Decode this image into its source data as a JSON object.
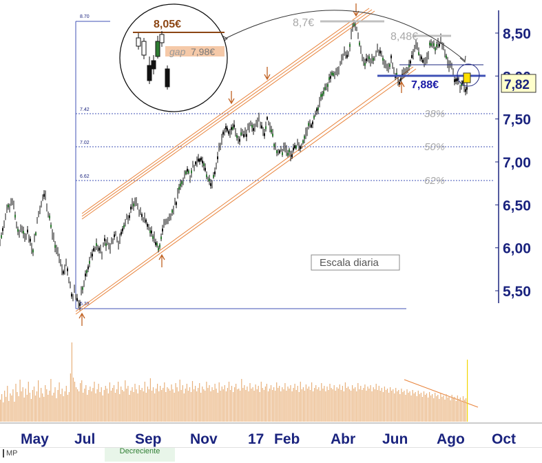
{
  "chart_data": {
    "type": "candlestick",
    "xlabel": "",
    "ylabel": "",
    "scale_note": "Escala diaria",
    "last_price": "7,82",
    "y_ticks": [
      "8,50",
      "8,00",
      "7,50",
      "7,00",
      "6,50",
      "6,00",
      "5,50"
    ],
    "y_tick_values": [
      8.5,
      8.0,
      7.5,
      7.0,
      6.5,
      6.0,
      5.5
    ],
    "ylim": [
      5.3,
      8.8
    ],
    "x_ticks": [
      "May",
      "Jul",
      "Sep",
      "Nov",
      "17",
      "Feb",
      "Abr",
      "Jun",
      "Ago",
      "Oct"
    ],
    "fib_levels": [
      {
        "label": "38%",
        "value": 7.42,
        "small_label": "7.42"
      },
      {
        "label": "50%",
        "value": 7.02,
        "small_label": "7.02"
      },
      {
        "label": "62%",
        "value": 6.62,
        "small_label": "6.62"
      }
    ],
    "fib_top": {
      "small_label": "8.70",
      "value": 8.7
    },
    "fib_bottom": {
      "small_label": "5.33",
      "value": 5.33
    },
    "annotations": {
      "peak": "8,7€",
      "lower_high": "8,48€",
      "support": "7,88€",
      "inset_top": "8,05€",
      "inset_gap_label": "gap",
      "inset_gap_value": "7,98€"
    },
    "price_path": [
      [
        0,
        6.05
      ],
      [
        4,
        6.22
      ],
      [
        8,
        6.35
      ],
      [
        12,
        6.45
      ],
      [
        16,
        6.55
      ],
      [
        20,
        6.48
      ],
      [
        24,
        6.3
      ],
      [
        28,
        6.18
      ],
      [
        32,
        6.22
      ],
      [
        36,
        6.1
      ],
      [
        40,
        6.18
      ],
      [
        44,
        6.05
      ],
      [
        48,
        6.0
      ],
      [
        52,
        6.2
      ],
      [
        56,
        6.4
      ],
      [
        60,
        6.55
      ],
      [
        64,
        6.65
      ],
      [
        68,
        6.5
      ],
      [
        72,
        6.35
      ],
      [
        76,
        6.15
      ],
      [
        80,
        6.0
      ],
      [
        84,
        5.92
      ],
      [
        88,
        5.78
      ],
      [
        92,
        5.7
      ],
      [
        96,
        5.85
      ],
      [
        100,
        5.6
      ],
      [
        104,
        5.45
      ],
      [
        108,
        5.5
      ],
      [
        112,
        5.38
      ],
      [
        116,
        5.36
      ],
      [
        120,
        5.55
      ],
      [
        124,
        5.65
      ],
      [
        128,
        5.78
      ],
      [
        132,
        5.9
      ],
      [
        136,
        5.95
      ],
      [
        140,
        6.05
      ],
      [
        144,
        6.0
      ],
      [
        148,
        5.95
      ],
      [
        152,
        6.1
      ],
      [
        156,
        6.05
      ],
      [
        160,
        6.0
      ],
      [
        164,
        6.1
      ],
      [
        168,
        6.18
      ],
      [
        172,
        6.05
      ],
      [
        176,
        6.15
      ],
      [
        180,
        6.25
      ],
      [
        184,
        6.35
      ],
      [
        188,
        6.4
      ],
      [
        192,
        6.48
      ],
      [
        196,
        6.55
      ],
      [
        200,
        6.48
      ],
      [
        204,
        6.38
      ],
      [
        208,
        6.3
      ],
      [
        212,
        6.35
      ],
      [
        216,
        6.25
      ],
      [
        220,
        6.2
      ],
      [
        224,
        6.1
      ],
      [
        228,
        6.05
      ],
      [
        232,
        6.0
      ],
      [
        236,
        6.18
      ],
      [
        240,
        6.3
      ],
      [
        244,
        6.35
      ],
      [
        248,
        6.4
      ],
      [
        252,
        6.45
      ],
      [
        256,
        6.55
      ],
      [
        260,
        6.68
      ],
      [
        264,
        6.8
      ],
      [
        268,
        6.82
      ],
      [
        272,
        6.88
      ],
      [
        276,
        6.85
      ],
      [
        280,
        6.95
      ],
      [
        284,
        6.98
      ],
      [
        288,
        7.05
      ],
      [
        292,
        7.0
      ],
      [
        296,
        6.95
      ],
      [
        300,
        6.85
      ],
      [
        304,
        6.78
      ],
      [
        308,
        6.75
      ],
      [
        312,
        6.88
      ],
      [
        316,
        7.05
      ],
      [
        320,
        7.2
      ],
      [
        324,
        7.35
      ],
      [
        328,
        7.42
      ],
      [
        332,
        7.38
      ],
      [
        336,
        7.35
      ],
      [
        340,
        7.4
      ],
      [
        344,
        7.32
      ],
      [
        348,
        7.28
      ],
      [
        352,
        7.35
      ],
      [
        356,
        7.3
      ],
      [
        360,
        7.38
      ],
      [
        364,
        7.42
      ],
      [
        368,
        7.35
      ],
      [
        372,
        7.4
      ],
      [
        376,
        7.5
      ],
      [
        380,
        7.42
      ],
      [
        384,
        7.3
      ],
      [
        388,
        7.48
      ],
      [
        392,
        7.38
      ],
      [
        396,
        7.28
      ],
      [
        400,
        7.15
      ],
      [
        404,
        7.1
      ],
      [
        408,
        7.12
      ],
      [
        412,
        7.15
      ],
      [
        416,
        7.1
      ],
      [
        420,
        7.12
      ],
      [
        424,
        7.08
      ],
      [
        428,
        7.15
      ],
      [
        432,
        7.2
      ],
      [
        436,
        7.18
      ],
      [
        440,
        7.25
      ],
      [
        444,
        7.32
      ],
      [
        448,
        7.4
      ],
      [
        452,
        7.45
      ],
      [
        456,
        7.52
      ],
      [
        460,
        7.6
      ],
      [
        464,
        7.7
      ],
      [
        468,
        7.8
      ],
      [
        472,
        7.88
      ],
      [
        476,
        7.92
      ],
      [
        480,
        7.98
      ],
      [
        484,
        8.05
      ],
      [
        488,
        8.02
      ],
      [
        492,
        8.1
      ],
      [
        496,
        8.22
      ],
      [
        500,
        8.28
      ],
      [
        504,
        8.2
      ],
      [
        508,
        8.38
      ],
      [
        512,
        8.55
      ],
      [
        516,
        8.6
      ],
      [
        520,
        8.45
      ],
      [
        524,
        8.3
      ],
      [
        528,
        8.15
      ],
      [
        532,
        8.2
      ],
      [
        536,
        8.25
      ],
      [
        540,
        8.18
      ],
      [
        544,
        8.22
      ],
      [
        548,
        8.3
      ],
      [
        552,
        8.28
      ],
      [
        556,
        8.2
      ],
      [
        560,
        8.15
      ],
      [
        564,
        8.1
      ],
      [
        568,
        8.2
      ],
      [
        572,
        8.05
      ],
      [
        576,
        7.98
      ],
      [
        580,
        7.92
      ],
      [
        584,
        8.0
      ],
      [
        588,
        8.05
      ],
      [
        592,
        8.1
      ],
      [
        596,
        8.2
      ],
      [
        600,
        8.25
      ],
      [
        604,
        8.35
      ],
      [
        608,
        8.3
      ],
      [
        612,
        8.2
      ],
      [
        616,
        8.15
      ],
      [
        620,
        8.25
      ],
      [
        624,
        8.35
      ],
      [
        628,
        8.38
      ],
      [
        632,
        8.32
      ],
      [
        636,
        8.38
      ],
      [
        640,
        8.42
      ],
      [
        644,
        8.3
      ],
      [
        648,
        8.2
      ],
      [
        652,
        8.15
      ],
      [
        656,
        8.1
      ],
      [
        660,
        7.98
      ],
      [
        664,
        7.95
      ],
      [
        668,
        7.9
      ],
      [
        672,
        7.92
      ],
      [
        676,
        7.85
      ],
      [
        680,
        7.82
      ]
    ],
    "volume": [
      32,
      40,
      28,
      45,
      36,
      52,
      30,
      41,
      38,
      47,
      29,
      55,
      43,
      37,
      61,
      44,
      50,
      35,
      48,
      39,
      58,
      42,
      33,
      46,
      51,
      38,
      44,
      60,
      35,
      49,
      41,
      36,
      53,
      47,
      39,
      45,
      62,
      38,
      42,
      50,
      34,
      46,
      57,
      40,
      48,
      37,
      44,
      52,
      39,
      43,
      70,
      115,
      64,
      58,
      50,
      47,
      44,
      56,
      60,
      42,
      48,
      53,
      39,
      46,
      51,
      44,
      49,
      58,
      41,
      47,
      55,
      43,
      50,
      38,
      46,
      52,
      48,
      41,
      57,
      45,
      49,
      53,
      42,
      47,
      58,
      40,
      51,
      46,
      44,
      60,
      48,
      52,
      39,
      45,
      50,
      43,
      55,
      47,
      41,
      53,
      46,
      49,
      44,
      58,
      42,
      51,
      47,
      63,
      45,
      50,
      41,
      48,
      55,
      44,
      52,
      46,
      49,
      57,
      43,
      50,
      48,
      45,
      54,
      47,
      42,
      56,
      50,
      44,
      61,
      46,
      53,
      41,
      48,
      55,
      45,
      50,
      43,
      59,
      47,
      52,
      44,
      49,
      56,
      42,
      51,
      47,
      45,
      58,
      49,
      53,
      44,
      50,
      46,
      55,
      48,
      42,
      57,
      45,
      51,
      47,
      53,
      44,
      49,
      58,
      46,
      52,
      43,
      50,
      55,
      47,
      48,
      45,
      62,
      49,
      53,
      46,
      51,
      44,
      56,
      48,
      50,
      45,
      54,
      47,
      52,
      43,
      58,
      49,
      46,
      51,
      55,
      44,
      48,
      53,
      46,
      50,
      45,
      57,
      49,
      52,
      44,
      50,
      47,
      56,
      45,
      51,
      48,
      53,
      44,
      49,
      55,
      46,
      52,
      43,
      58,
      47,
      50,
      45,
      54,
      48,
      51,
      46,
      57,
      44,
      49,
      53,
      47,
      50,
      45,
      56,
      48,
      52,
      44,
      51,
      46,
      55,
      49,
      47,
      53,
      45,
      50,
      48,
      54,
      46,
      52,
      44,
      57,
      49,
      51,
      47,
      45,
      53,
      48,
      50,
      44,
      56,
      47,
      52,
      46,
      49,
      54,
      45,
      51,
      48,
      53,
      44,
      50,
      47,
      55,
      46,
      52,
      45,
      49,
      43,
      51,
      46,
      48,
      42,
      50,
      45,
      47,
      41,
      49,
      44,
      46,
      40,
      48,
      43,
      45,
      39,
      47,
      42,
      44,
      38,
      46,
      41,
      43,
      37,
      45,
      40,
      42,
      36,
      44,
      39,
      41,
      35,
      43,
      38,
      40,
      34,
      42,
      37,
      39,
      33,
      41,
      36,
      38,
      32,
      40,
      35,
      37,
      31,
      39,
      34,
      36,
      30,
      38,
      33,
      35,
      29,
      37,
      32,
      34,
      90
    ]
  },
  "footer": {
    "left_label": "MP",
    "tab_label": "Decreciente"
  }
}
